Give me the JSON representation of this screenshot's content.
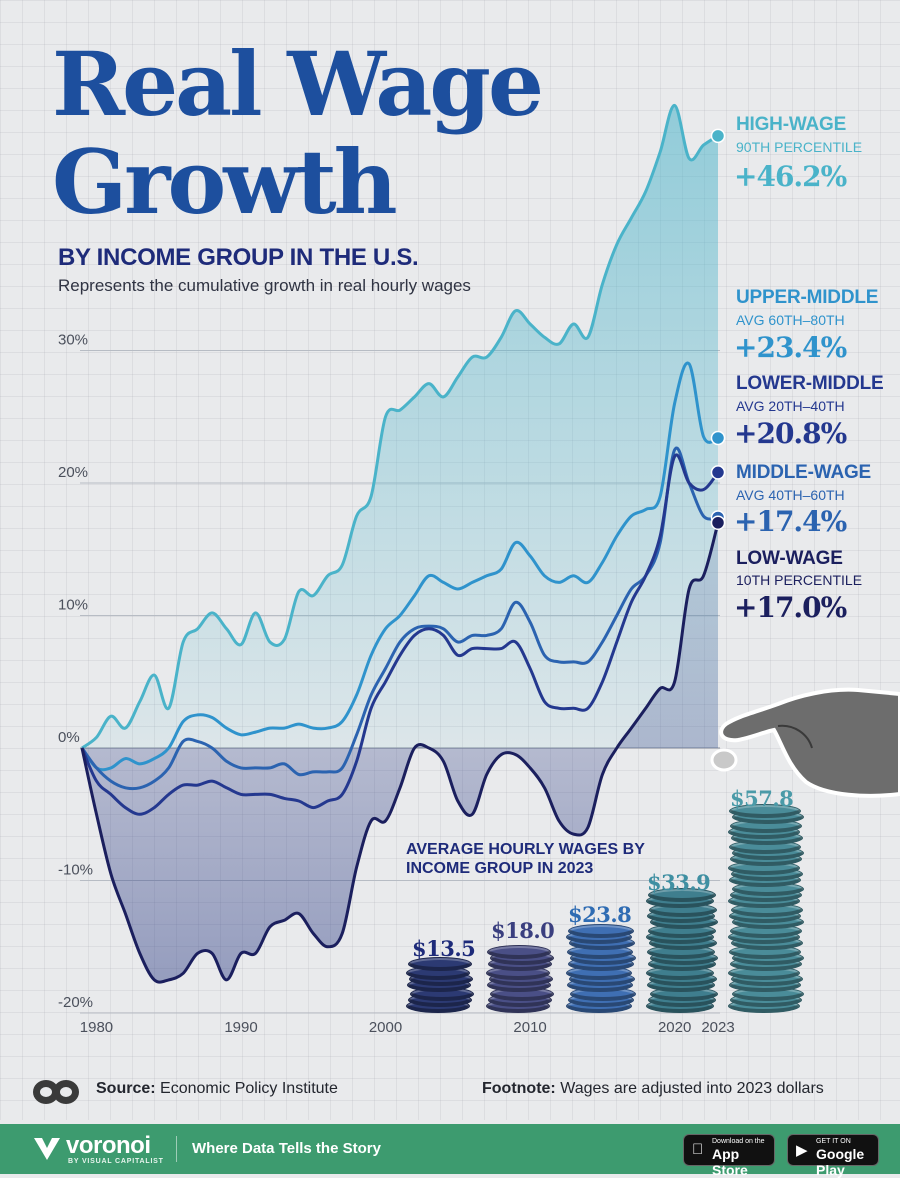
{
  "title_line1": "Real Wage",
  "title_line2": "Growth",
  "subtitle": "BY INCOME GROUP IN THE U.S.",
  "description": "Represents the cumulative growth in real hourly wages",
  "colors": {
    "high": "#4ab3c9",
    "upper_middle": "#2f93cc",
    "lower_middle": "#24388f",
    "middle": "#2b63b0",
    "low": "#1b1f5e",
    "title": "#1d4f9e",
    "brand_bar": "#3d9b6f"
  },
  "series_labels": [
    {
      "key": "high",
      "name": "HIGH-WAGE",
      "sub": "90TH PERCENTILE",
      "value": "+46.2%"
    },
    {
      "key": "upper_middle",
      "name": "UPPER-MIDDLE",
      "sub": "AVG 60TH–80TH",
      "value": "+23.4%"
    },
    {
      "key": "lower_middle",
      "name": "LOWER-MIDDLE",
      "sub": "AVG 20TH–40TH",
      "value": "+20.8%"
    },
    {
      "key": "middle",
      "name": "MIDDLE-WAGE",
      "sub": "AVG 40TH–60TH",
      "value": "+17.4%"
    },
    {
      "key": "low",
      "name": "LOW-WAGE",
      "sub": "10TH PERCENTILE",
      "value": "+17.0%"
    }
  ],
  "chart_data": {
    "type": "area",
    "x_ticks": [
      "1980",
      "1990",
      "2000",
      "2010",
      "2020",
      "2023"
    ],
    "y_ticks": [
      "30%",
      "20%",
      "10%",
      "0%",
      "-10%",
      "-20%"
    ],
    "ylim": [
      -20,
      46.2
    ],
    "xlim": [
      1979,
      2023
    ],
    "series": [
      {
        "key": "high",
        "x": [
          1979,
          1980,
          1981,
          1982,
          1983,
          1984,
          1985,
          1986,
          1987,
          1988,
          1989,
          1990,
          1991,
          1992,
          1993,
          1994,
          1995,
          1996,
          1997,
          1998,
          1999,
          2000,
          2001,
          2002,
          2003,
          2004,
          2005,
          2006,
          2007,
          2008,
          2009,
          2010,
          2011,
          2012,
          2013,
          2014,
          2015,
          2016,
          2017,
          2018,
          2019,
          2020,
          2021,
          2022,
          2023
        ],
        "y": [
          0,
          0.8,
          2.4,
          1.5,
          3.5,
          5.5,
          3,
          8,
          9,
          10.2,
          9,
          7.8,
          10.2,
          8,
          8.2,
          11.8,
          11.5,
          13,
          13.8,
          17.5,
          19,
          25,
          25.5,
          26.5,
          27.5,
          26.5,
          28,
          29.5,
          29.5,
          31,
          33,
          32,
          31,
          30.5,
          32,
          31,
          35,
          38,
          40,
          42,
          45,
          48.5,
          44.5,
          45.5,
          46.2
        ]
      },
      {
        "key": "upper_middle",
        "x": [
          1979,
          1980,
          1981,
          1982,
          1983,
          1984,
          1985,
          1986,
          1987,
          1988,
          1989,
          1990,
          1991,
          1992,
          1993,
          1994,
          1995,
          1996,
          1997,
          1998,
          1999,
          2000,
          2001,
          2002,
          2003,
          2004,
          2005,
          2006,
          2007,
          2008,
          2009,
          2010,
          2011,
          2012,
          2013,
          2014,
          2015,
          2016,
          2017,
          2018,
          2019,
          2020,
          2021,
          2022,
          2023
        ],
        "y": [
          0,
          -1.5,
          -1.5,
          -0.8,
          -1.2,
          -0.8,
          0,
          2,
          2.5,
          2.3,
          1.5,
          1,
          1.2,
          1.5,
          1.5,
          1.8,
          1.5,
          1.5,
          2,
          4,
          7,
          9,
          10,
          11.5,
          13,
          12.5,
          12,
          12.5,
          13,
          13.5,
          15.5,
          14.5,
          13,
          12.5,
          13,
          12.5,
          14,
          16,
          17.5,
          18,
          19,
          26,
          29,
          23.5,
          23.4
        ]
      },
      {
        "key": "lower_middle",
        "x": [
          1979,
          1980,
          1981,
          1982,
          1983,
          1984,
          1985,
          1986,
          1987,
          1988,
          1989,
          1990,
          1991,
          1992,
          1993,
          1994,
          1995,
          1996,
          1997,
          1998,
          1999,
          2000,
          2001,
          2002,
          2003,
          2004,
          2005,
          2006,
          2007,
          2008,
          2009,
          2010,
          2011,
          2012,
          2013,
          2014,
          2015,
          2016,
          2017,
          2018,
          2019,
          2020,
          2021,
          2022,
          2023
        ],
        "y": [
          0,
          -2.5,
          -3.5,
          -4.5,
          -5,
          -4.5,
          -3.5,
          -2.8,
          -2.8,
          -2.5,
          -3,
          -3.5,
          -3.5,
          -3.5,
          -3.8,
          -4,
          -4.5,
          -4,
          -3.5,
          -1,
          3,
          5,
          7,
          8.5,
          9,
          8.5,
          7,
          7.5,
          7.5,
          7.5,
          8,
          6,
          3.5,
          3,
          3,
          3,
          5,
          8,
          11,
          13,
          16,
          22,
          20,
          19.5,
          20.8
        ]
      },
      {
        "key": "middle",
        "x": [
          1979,
          1980,
          1981,
          1982,
          1983,
          1984,
          1985,
          1986,
          1987,
          1988,
          1989,
          1990,
          1991,
          1992,
          1993,
          1994,
          1995,
          1996,
          1997,
          1998,
          1999,
          2000,
          2001,
          2002,
          2003,
          2004,
          2005,
          2006,
          2007,
          2008,
          2009,
          2010,
          2011,
          2012,
          2013,
          2014,
          2015,
          2016,
          2017,
          2018,
          2019,
          2020,
          2021,
          2022,
          2023
        ],
        "y": [
          0,
          -1.5,
          -2.5,
          -3,
          -3,
          -2.5,
          -1.5,
          0.5,
          0.5,
          0,
          -1,
          -1.5,
          -1.5,
          -1.5,
          -1.2,
          -2,
          -1.8,
          -1.8,
          -1.5,
          1,
          4,
          6,
          8,
          9,
          9.2,
          9,
          8,
          8.5,
          8.5,
          9,
          11,
          9.5,
          7,
          6.5,
          6.5,
          6.5,
          8,
          10,
          12,
          13,
          15.5,
          22.5,
          20,
          17.5,
          17.4
        ]
      },
      {
        "key": "low",
        "x": [
          1979,
          1980,
          1981,
          1982,
          1983,
          1984,
          1985,
          1986,
          1987,
          1988,
          1989,
          1990,
          1991,
          1992,
          1993,
          1994,
          1995,
          1996,
          1997,
          1998,
          1999,
          2000,
          2001,
          2002,
          2003,
          2004,
          2005,
          2006,
          2007,
          2008,
          2009,
          2010,
          2011,
          2012,
          2013,
          2014,
          2015,
          2016,
          2017,
          2018,
          2019,
          2020,
          2021,
          2022,
          2023
        ],
        "y": [
          0,
          -5,
          -9.5,
          -12.5,
          -15.5,
          -17.5,
          -17.5,
          -17,
          -15.5,
          -15.5,
          -17.5,
          -15.5,
          -15.5,
          -13.5,
          -13,
          -12.5,
          -14,
          -15,
          -14,
          -9,
          -5.5,
          -5.5,
          -3,
          0,
          0,
          -1,
          -4,
          -5,
          -2,
          -0.5,
          -0.5,
          -1.5,
          -3,
          -5.5,
          -6.5,
          -6,
          -2,
          0,
          1.5,
          3,
          4.5,
          5,
          12,
          13,
          17
        ]
      }
    ],
    "inset": {
      "type": "bar",
      "title": "AVERAGE HOURLY WAGES BY INCOME GROUP IN 2023",
      "values": [
        13.5,
        18.0,
        23.8,
        33.9,
        57.8
      ],
      "labels": [
        "$13.5",
        "$18.0",
        "$23.8",
        "$33.9",
        "$57.8"
      ],
      "colors": [
        "#2c3a73",
        "#4a4f86",
        "#3f6fb3",
        "#3f7e8e",
        "#4a8c99"
      ]
    }
  },
  "source_label": "Source:",
  "source_text": "Economic Policy Institute",
  "footnote_label": "Footnote:",
  "footnote_text": "Wages are adjusted into 2023 dollars",
  "brand": "voronoi",
  "brand_sub": "BY VISUAL CAPITALIST",
  "tagline": "Where Data Tells the Story",
  "app_store": {
    "small": "Download on the",
    "big": "App Store"
  },
  "google_play": {
    "small": "GET IT ON",
    "big": "Google Play"
  }
}
